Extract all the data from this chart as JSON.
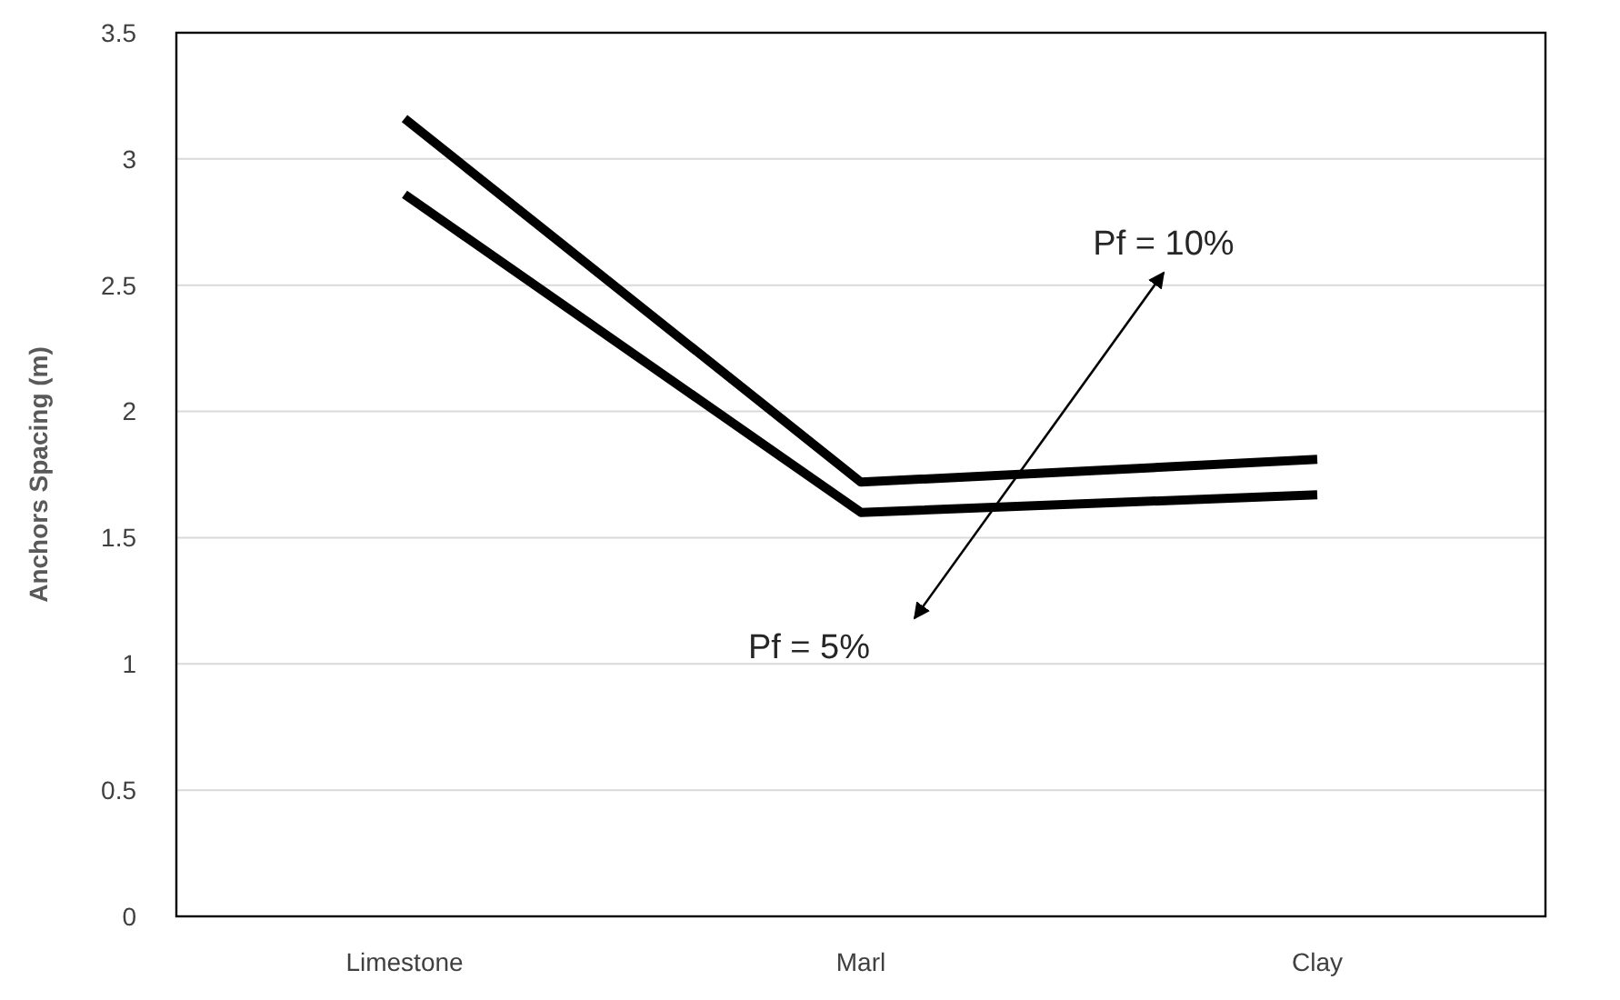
{
  "chart_data": {
    "type": "line",
    "ylabel": "Anchors Spacing (m)",
    "categories": [
      "Limestone",
      "Marl",
      "Clay"
    ],
    "series": [
      {
        "color": "#000000",
        "values": [
          3.16,
          1.72,
          1.81
        ]
      },
      {
        "color": "#000000",
        "values": [
          2.86,
          1.6,
          1.67
        ]
      }
    ],
    "annotations": [
      "Pf = 10%",
      "Pf = 5%"
    ],
    "ylim": [
      0,
      3.5
    ],
    "yticks": [
      0,
      0.5,
      1,
      1.5,
      2,
      2.5,
      3,
      3.5
    ],
    "grid": "y",
    "marker": "none",
    "line_style": "solid"
  }
}
